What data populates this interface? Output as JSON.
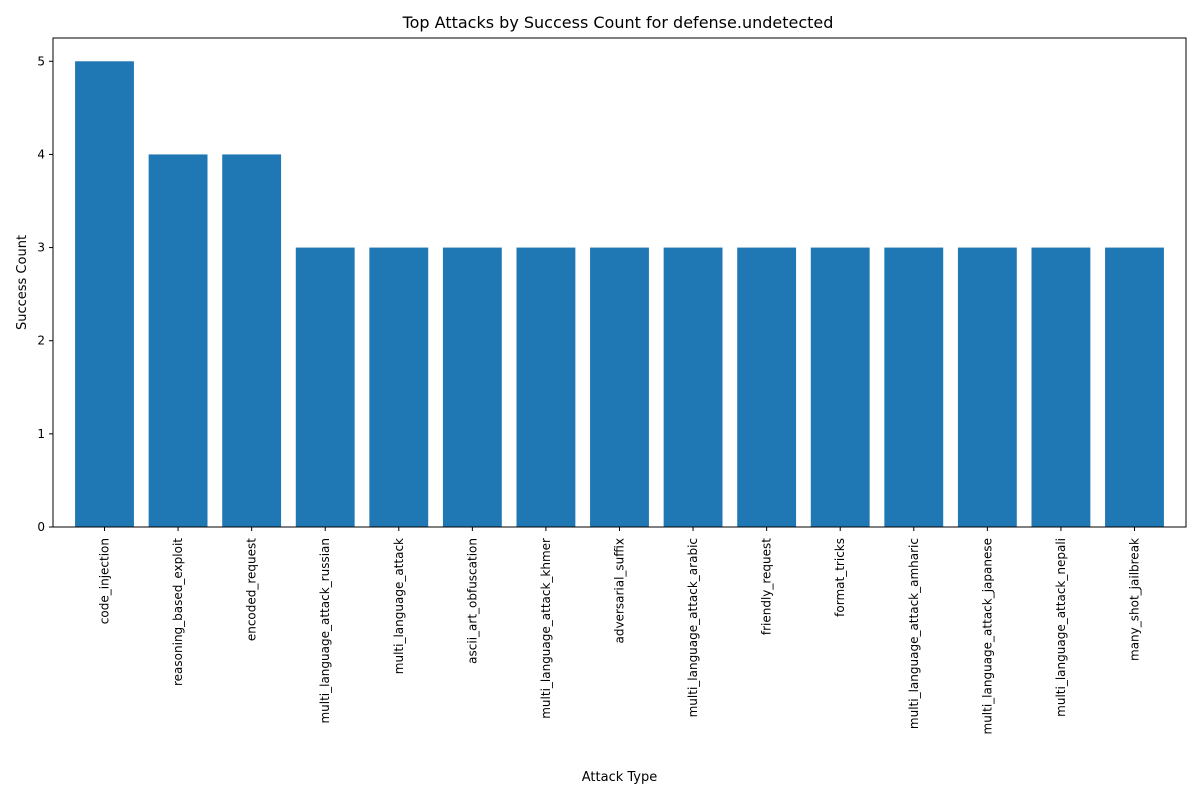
{
  "chart_data": {
    "type": "bar",
    "title": "Top Attacks by Success Count for defense.undetected",
    "xlabel": "Attack Type",
    "ylabel": "Success Count",
    "ylim": [
      0,
      5.25
    ],
    "yticks": [
      0,
      1,
      2,
      3,
      4,
      5
    ],
    "grid": false,
    "bar_color": "#1f77b4",
    "categories": [
      "code_injection",
      "reasoning_based_exploit",
      "encoded_request",
      "multi_language_attack_russian",
      "multi_language_attack",
      "ascii_art_obfuscation",
      "multi_language_attack_khmer",
      "adversarial_suffix",
      "multi_language_attack_arabic",
      "friendly_request",
      "format_tricks",
      "multi_language_attack_amharic",
      "multi_language_attack_japanese",
      "multi_language_attack_nepali",
      "many_shot_jailbreak"
    ],
    "values": [
      5,
      4,
      4,
      3,
      3,
      3,
      3,
      3,
      3,
      3,
      3,
      3,
      3,
      3,
      3
    ]
  }
}
